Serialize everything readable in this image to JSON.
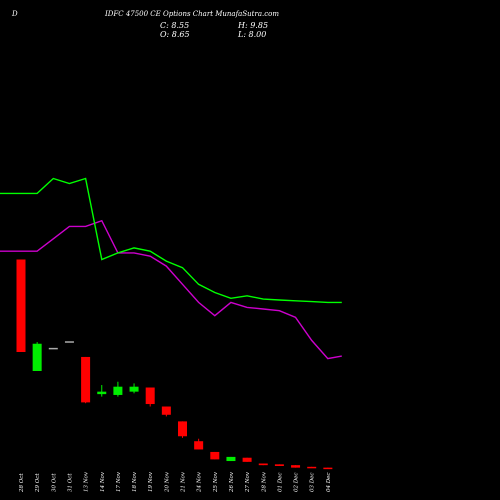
{
  "header": {
    "prefix": "D",
    "title": "IDFC 47500 CE Options Chart MunafaSutra.com"
  },
  "ohlc": {
    "close": "C: 8.55",
    "open": "O: 8.65",
    "high": "H: 9.85",
    "low": "L: 8.00"
  },
  "chart_data": {
    "type": "candlestick",
    "colors": {
      "up": "#00ee00",
      "down": "#ff0000",
      "ma_short": "#00ff00",
      "ma_long": "#cc00cc",
      "neutral": "#aaaaaa"
    },
    "dates": [
      "28 Oct",
      "29 Oct",
      "30 Oct",
      "31 Oct",
      "13 Nov",
      "14 Nov",
      "17 Nov",
      "18 Nov",
      "19 Nov",
      "20 Nov",
      "21 Nov",
      "24 Nov",
      "25 Nov",
      "26 Nov",
      "27 Nov",
      "28 Nov",
      "01 Dec",
      "02 Dec",
      "03 Dec",
      "04 Dec"
    ],
    "candles": [
      {
        "open": 220,
        "close": 108,
        "high": 220,
        "low": 108
      },
      {
        "open": 85,
        "close": 118,
        "high": 120,
        "low": 85
      },
      {
        "open": 113,
        "close": 113,
        "high": 113,
        "low": 113
      },
      {
        "open": 121,
        "close": 121,
        "high": 121,
        "low": 121
      },
      {
        "open": 102,
        "close": 47,
        "high": 102,
        "low": 46
      },
      {
        "open": 57,
        "close": 60,
        "high": 68,
        "low": 54
      },
      {
        "open": 56,
        "close": 66,
        "high": 72,
        "low": 54
      },
      {
        "open": 60,
        "close": 66,
        "high": 70,
        "low": 58
      },
      {
        "open": 65,
        "close": 45,
        "high": 65,
        "low": 42
      },
      {
        "open": 42,
        "close": 32,
        "high": 42,
        "low": 30
      },
      {
        "open": 24,
        "close": 6,
        "high": 24,
        "low": 4
      },
      {
        "open": 0,
        "close": -10,
        "high": 3,
        "low": -10
      },
      {
        "open": -13,
        "close": -22,
        "high": -13,
        "low": -22
      },
      {
        "open": -24,
        "close": -19,
        "high": -19,
        "low": -24
      },
      {
        "open": -20,
        "close": -25,
        "high": -20,
        "low": -25
      },
      {
        "open": -27,
        "close": -29,
        "high": -27,
        "low": -29
      },
      {
        "open": -28,
        "close": -30,
        "high": -28,
        "low": -30
      },
      {
        "open": -29,
        "close": -32,
        "high": -29,
        "low": -32
      },
      {
        "open": -31,
        "close": -32,
        "high": -31,
        "low": -32
      },
      {
        "open": -32,
        "close": -33,
        "high": -32,
        "low": -33
      }
    ],
    "ma_short": [
      300,
      300,
      318,
      312,
      318,
      220,
      228,
      234,
      230,
      218,
      210,
      190,
      180,
      173,
      176,
      172,
      171,
      170,
      169,
      168
    ],
    "ma_long": [
      230,
      230,
      245,
      260,
      260,
      267,
      228,
      228,
      224,
      212,
      190,
      168,
      152,
      168,
      162,
      160,
      158,
      150,
      122,
      100
    ],
    "ma_long_end": 103
  }
}
